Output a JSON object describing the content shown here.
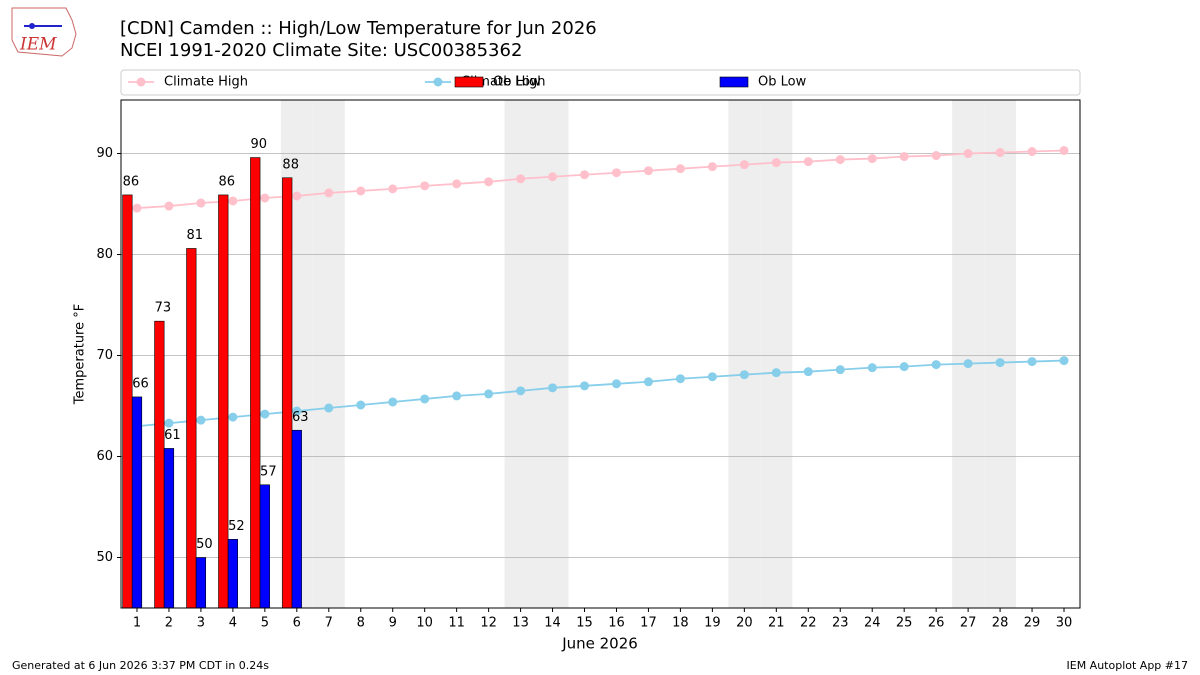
{
  "chart_data": {
    "type": "bar-line",
    "title": "[CDN] Camden :: High/Low Temperature for Jun 2026",
    "subtitle": "NCEI 1991-2020 Climate Site: USC00385362",
    "logo_text": "IEM",
    "xlabel": "June 2026",
    "ylabel": "Temperature °F",
    "footer_left": "Generated at 6 Jun 2026 3:37 PM CDT in 0.24s",
    "footer_right": "IEM Autoplot App #17",
    "x": [
      1,
      2,
      3,
      4,
      5,
      6,
      7,
      8,
      9,
      10,
      11,
      12,
      13,
      14,
      15,
      16,
      17,
      18,
      19,
      20,
      21,
      22,
      23,
      24,
      25,
      26,
      27,
      28,
      29,
      30
    ],
    "xlim": [
      0.5,
      30.5
    ],
    "xticks": [
      1,
      2,
      3,
      4,
      5,
      6,
      7,
      8,
      9,
      10,
      11,
      12,
      13,
      14,
      15,
      16,
      17,
      18,
      19,
      20,
      21,
      22,
      23,
      24,
      25,
      26,
      27,
      28,
      29,
      30
    ],
    "ylim": [
      45,
      95.3
    ],
    "yticks": [
      50,
      60,
      70,
      80,
      90
    ],
    "grid": true,
    "shaded_days": [
      6,
      7,
      13,
      14,
      20,
      21,
      27,
      28
    ],
    "shade_color": "#eeeeee",
    "legend": "top",
    "series": [
      {
        "name": "Climate High",
        "kind": "line",
        "color": "#ffc0cb",
        "values": [
          84.6,
          84.8,
          85.1,
          85.3,
          85.6,
          85.8,
          86.1,
          86.3,
          86.5,
          86.8,
          87.0,
          87.2,
          87.5,
          87.7,
          87.9,
          88.1,
          88.3,
          88.5,
          88.7,
          88.9,
          89.1,
          89.2,
          89.4,
          89.5,
          89.7,
          89.8,
          90.0,
          90.1,
          90.2,
          90.3
        ]
      },
      {
        "name": "Climate Low",
        "kind": "line",
        "color": "#87ceeb",
        "values": [
          63.0,
          63.3,
          63.6,
          63.9,
          64.2,
          64.5,
          64.8,
          65.1,
          65.4,
          65.7,
          66.0,
          66.2,
          66.5,
          66.8,
          67.0,
          67.2,
          67.4,
          67.7,
          67.9,
          68.1,
          68.3,
          68.4,
          68.6,
          68.8,
          68.9,
          69.1,
          69.2,
          69.3,
          69.4,
          69.5
        ]
      },
      {
        "name": "Ob High",
        "kind": "bar",
        "color": "#ff0000",
        "values": [
          85.9,
          73.4,
          80.6,
          85.9,
          89.6,
          87.6,
          null,
          null,
          null,
          null,
          null,
          null,
          null,
          null,
          null,
          null,
          null,
          null,
          null,
          null,
          null,
          null,
          null,
          null,
          null,
          null,
          null,
          null,
          null,
          null
        ],
        "value_labels": [
          "86",
          "73",
          "81",
          "86",
          "90",
          "88",
          null,
          null,
          null,
          null,
          null,
          null,
          null,
          null,
          null,
          null,
          null,
          null,
          null,
          null,
          null,
          null,
          null,
          null,
          null,
          null,
          null,
          null,
          null,
          null
        ]
      },
      {
        "name": "Ob Low",
        "kind": "bar",
        "color": "#0000ff",
        "values": [
          65.9,
          60.8,
          50.0,
          51.8,
          57.2,
          62.6,
          null,
          null,
          null,
          null,
          null,
          null,
          null,
          null,
          null,
          null,
          null,
          null,
          null,
          null,
          null,
          null,
          null,
          null,
          null,
          null,
          null,
          null,
          null,
          null
        ],
        "value_labels": [
          "66",
          "61",
          "50",
          "52",
          "57",
          "63",
          null,
          null,
          null,
          null,
          null,
          null,
          null,
          null,
          null,
          null,
          null,
          null,
          null,
          null,
          null,
          null,
          null,
          null,
          null,
          null,
          null,
          null,
          null,
          null
        ]
      }
    ]
  }
}
